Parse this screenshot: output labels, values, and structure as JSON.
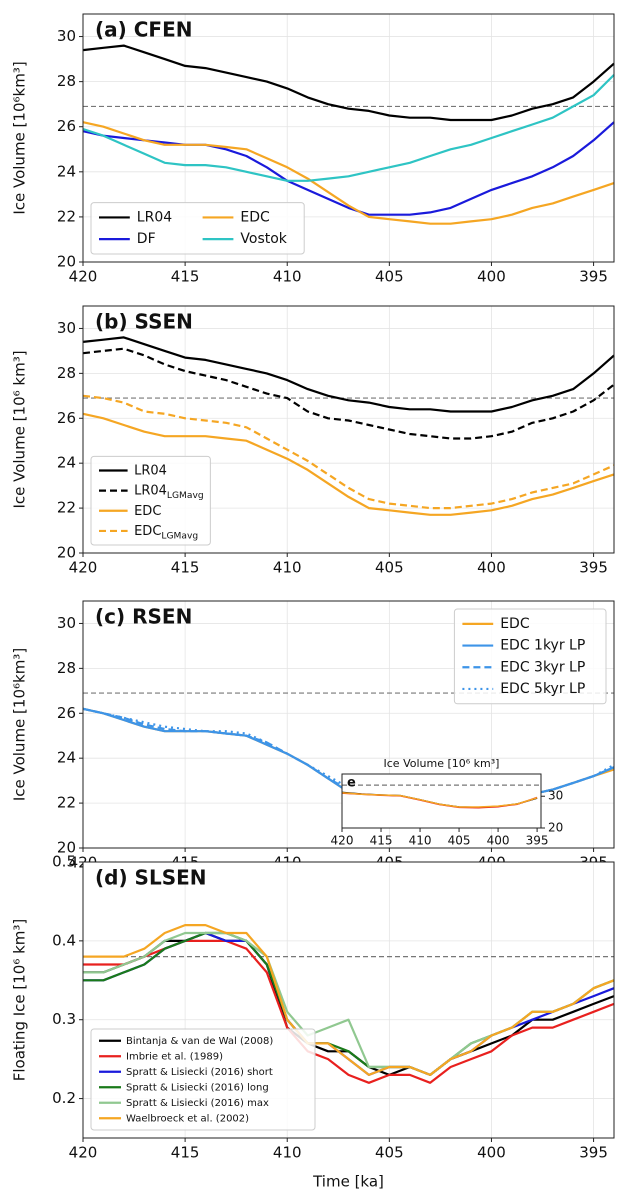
{
  "chart_data": [
    {
      "type": "line",
      "title": "(a) CFEN",
      "ylabel": "Ice Volume [10⁶km³]",
      "x": [
        420,
        419,
        418,
        417,
        416,
        415,
        414,
        413,
        412,
        411,
        410,
        409,
        408,
        407,
        406,
        405,
        404,
        403,
        402,
        401,
        400,
        399,
        398,
        397,
        396,
        395,
        394
      ],
      "xlim": [
        420,
        394
      ],
      "xticks": [
        420,
        415,
        410,
        405,
        400,
        395
      ],
      "ylim": [
        20,
        31
      ],
      "yticks": [
        20,
        22,
        24,
        26,
        28,
        30
      ],
      "grid": true,
      "reference_line": 26.9,
      "legend": "lower left",
      "legend_columns": 2,
      "series": [
        {
          "name": "LR04",
          "color": "#000000",
          "values": [
            29.4,
            29.5,
            29.6,
            29.3,
            29.0,
            28.7,
            28.6,
            28.4,
            28.2,
            28.0,
            27.7,
            27.3,
            27.0,
            26.8,
            26.7,
            26.5,
            26.4,
            26.4,
            26.3,
            26.3,
            26.3,
            26.5,
            26.8,
            27.0,
            27.3,
            28.0,
            28.8
          ]
        },
        {
          "name": "DF",
          "color": "#1a1adb",
          "values": [
            25.8,
            25.6,
            25.5,
            25.4,
            25.3,
            25.2,
            25.2,
            25.0,
            24.7,
            24.2,
            23.6,
            23.2,
            22.8,
            22.4,
            22.1,
            22.1,
            22.1,
            22.2,
            22.4,
            22.8,
            23.2,
            23.5,
            23.8,
            24.2,
            24.7,
            25.4,
            26.2
          ]
        },
        {
          "name": "EDC",
          "color": "#f5a623",
          "values": [
            26.2,
            26.0,
            25.7,
            25.4,
            25.2,
            25.2,
            25.2,
            25.1,
            25.0,
            24.6,
            24.2,
            23.7,
            23.1,
            22.5,
            22.0,
            21.9,
            21.8,
            21.7,
            21.7,
            21.8,
            21.9,
            22.1,
            22.4,
            22.6,
            22.9,
            23.2,
            23.5
          ]
        },
        {
          "name": "Vostok",
          "color": "#2ec4c4",
          "values": [
            25.9,
            25.6,
            25.2,
            24.8,
            24.4,
            24.3,
            24.3,
            24.2,
            24.0,
            23.8,
            23.6,
            23.6,
            23.7,
            23.8,
            24.0,
            24.2,
            24.4,
            24.7,
            25.0,
            25.2,
            25.5,
            25.8,
            26.1,
            26.4,
            26.9,
            27.4,
            28.3
          ]
        }
      ]
    },
    {
      "type": "line",
      "title": "(b) SSEN",
      "ylabel": "Ice Volume [10⁶ km³]",
      "x": [
        420,
        419,
        418,
        417,
        416,
        415,
        414,
        413,
        412,
        411,
        410,
        409,
        408,
        407,
        406,
        405,
        404,
        403,
        402,
        401,
        400,
        399,
        398,
        397,
        396,
        395,
        394
      ],
      "xlim": [
        420,
        394
      ],
      "xticks": [
        420,
        415,
        410,
        405,
        400,
        395
      ],
      "ylim": [
        20,
        31
      ],
      "yticks": [
        20,
        22,
        24,
        26,
        28,
        30
      ],
      "grid": true,
      "reference_line": 26.9,
      "legend": "lower left",
      "legend_columns": 1,
      "series": [
        {
          "name": "LR04",
          "color": "#000000",
          "values": [
            29.4,
            29.5,
            29.6,
            29.3,
            29.0,
            28.7,
            28.6,
            28.4,
            28.2,
            28.0,
            27.7,
            27.3,
            27.0,
            26.8,
            26.7,
            26.5,
            26.4,
            26.4,
            26.3,
            26.3,
            26.3,
            26.5,
            26.8,
            27.0,
            27.3,
            28.0,
            28.8
          ]
        },
        {
          "name": "LR04",
          "name_sub": "LGMavg",
          "dash": "dashed",
          "color": "#000000",
          "values": [
            28.9,
            29.0,
            29.1,
            28.8,
            28.4,
            28.1,
            27.9,
            27.7,
            27.4,
            27.1,
            26.9,
            26.3,
            26.0,
            25.9,
            25.7,
            25.5,
            25.3,
            25.2,
            25.1,
            25.1,
            25.2,
            25.4,
            25.8,
            26.0,
            26.3,
            26.8,
            27.5
          ]
        },
        {
          "name": "EDC",
          "color": "#f5a623",
          "values": [
            26.2,
            26.0,
            25.7,
            25.4,
            25.2,
            25.2,
            25.2,
            25.1,
            25.0,
            24.6,
            24.2,
            23.7,
            23.1,
            22.5,
            22.0,
            21.9,
            21.8,
            21.7,
            21.7,
            21.8,
            21.9,
            22.1,
            22.4,
            22.6,
            22.9,
            23.2,
            23.5
          ]
        },
        {
          "name": "EDC",
          "name_sub": "LGMavg",
          "dash": "dashed",
          "color": "#f5a623",
          "values": [
            27.0,
            26.9,
            26.7,
            26.3,
            26.2,
            26.0,
            25.9,
            25.8,
            25.6,
            25.1,
            24.6,
            24.1,
            23.5,
            22.9,
            22.4,
            22.2,
            22.1,
            22.0,
            22.0,
            22.1,
            22.2,
            22.4,
            22.7,
            22.9,
            23.1,
            23.5,
            23.9
          ]
        }
      ]
    },
    {
      "type": "line",
      "title": "(c) RSEN",
      "ylabel": "Ice Volume [10⁶km³]",
      "x": [
        420,
        419,
        418,
        417,
        416,
        415,
        414,
        413,
        412,
        411,
        410,
        409,
        408,
        407,
        406,
        405,
        404,
        403,
        402,
        401,
        400,
        399,
        398,
        397,
        396,
        395,
        394
      ],
      "xlim": [
        420,
        394
      ],
      "xticks": [
        420,
        415,
        410,
        405,
        400,
        395
      ],
      "ylim": [
        20,
        31
      ],
      "yticks": [
        20,
        22,
        24,
        26,
        28,
        30
      ],
      "grid": true,
      "reference_line": 26.9,
      "legend": "upper right",
      "legend_columns": 1,
      "series": [
        {
          "name": "EDC",
          "color": "#f5a623",
          "values": [
            26.2,
            26.0,
            25.7,
            25.4,
            25.2,
            25.2,
            25.2,
            25.1,
            25.0,
            24.6,
            24.2,
            23.7,
            23.1,
            22.5,
            22.0,
            21.9,
            21.8,
            21.7,
            21.7,
            21.8,
            21.9,
            22.1,
            22.4,
            22.6,
            22.9,
            23.2,
            23.5
          ]
        },
        {
          "name": "EDC 1kyr LP",
          "color": "#3d94e8",
          "values": [
            26.2,
            26.0,
            25.7,
            25.4,
            25.2,
            25.2,
            25.2,
            25.1,
            25.0,
            24.6,
            24.2,
            23.7,
            23.1,
            22.5,
            22.0,
            21.9,
            21.8,
            21.8,
            21.8,
            21.8,
            21.9,
            22.1,
            22.4,
            22.6,
            22.9,
            23.2,
            23.6
          ]
        },
        {
          "name": "EDC 3kyr LP",
          "dash": "dashed",
          "color": "#3d94e8",
          "values": [
            26.2,
            26.0,
            25.8,
            25.5,
            25.3,
            25.2,
            25.2,
            25.1,
            25.0,
            24.7,
            24.2,
            23.7,
            23.1,
            22.6,
            22.1,
            21.9,
            21.9,
            21.8,
            21.8,
            21.9,
            22.0,
            22.2,
            22.4,
            22.6,
            22.9,
            23.2,
            23.6
          ]
        },
        {
          "name": "EDC 5kyr LP",
          "dash": "dotted",
          "color": "#3d94e8",
          "values": [
            26.2,
            26.0,
            25.8,
            25.6,
            25.4,
            25.3,
            25.2,
            25.2,
            25.1,
            24.7,
            24.2,
            23.7,
            23.2,
            22.7,
            22.2,
            22.0,
            21.9,
            21.9,
            21.9,
            21.9,
            22.0,
            22.2,
            22.4,
            22.6,
            22.9,
            23.2,
            23.7
          ]
        }
      ]
    },
    {
      "type": "line",
      "title": "(d) SLSEN",
      "ylabel": "Floating Ice [10⁶ km³]",
      "xlabel": "Time [ka]",
      "x": [
        420,
        419,
        418,
        417,
        416,
        415,
        414,
        413,
        412,
        411,
        410,
        409,
        408,
        407,
        406,
        405,
        404,
        403,
        402,
        401,
        400,
        399,
        398,
        397,
        396,
        395,
        394
      ],
      "xlim": [
        420,
        394
      ],
      "xticks": [
        420,
        415,
        410,
        405,
        400,
        395
      ],
      "ylim": [
        0.15,
        0.5
      ],
      "yticks": [
        0.2,
        0.3,
        0.4,
        0.5
      ],
      "grid": true,
      "reference_line": 0.38,
      "legend": "lower left",
      "legend_columns": 1,
      "series": [
        {
          "name": "Bintanja & van de Wal (2008)",
          "color": "#000000",
          "values": [
            0.36,
            0.36,
            0.37,
            0.38,
            0.4,
            0.4,
            0.41,
            0.4,
            0.4,
            0.37,
            0.29,
            0.27,
            0.26,
            0.26,
            0.24,
            0.23,
            0.24,
            0.23,
            0.25,
            0.26,
            0.27,
            0.28,
            0.3,
            0.3,
            0.31,
            0.32,
            0.33
          ]
        },
        {
          "name": "Imbrie et al. (1989)",
          "color": "#e8201e",
          "values": [
            0.37,
            0.37,
            0.37,
            0.38,
            0.39,
            0.4,
            0.4,
            0.4,
            0.39,
            0.36,
            0.29,
            0.26,
            0.25,
            0.23,
            0.22,
            0.23,
            0.23,
            0.22,
            0.24,
            0.25,
            0.26,
            0.28,
            0.29,
            0.29,
            0.3,
            0.31,
            0.32
          ]
        },
        {
          "name": "Spratt & Lisiecki (2016) short",
          "color": "#1a1adb",
          "values": [
            0.35,
            0.35,
            0.36,
            0.37,
            0.39,
            0.4,
            0.41,
            0.4,
            0.4,
            0.37,
            0.3,
            0.27,
            0.27,
            0.25,
            0.23,
            0.24,
            0.24,
            0.23,
            0.25,
            0.26,
            0.28,
            0.29,
            0.3,
            0.31,
            0.32,
            0.33,
            0.34
          ]
        },
        {
          "name": "Spratt & Lisiecki (2016) long",
          "color": "#1a7a1a",
          "values": [
            0.35,
            0.35,
            0.36,
            0.37,
            0.39,
            0.4,
            0.41,
            0.41,
            0.4,
            0.37,
            0.3,
            0.27,
            0.27,
            0.26,
            0.24,
            0.24,
            0.24,
            0.23,
            0.25,
            0.27,
            0.28,
            0.29,
            0.31,
            0.31,
            0.32,
            0.34,
            0.35
          ]
        },
        {
          "name": "Spratt & Lisiecki (2016) max",
          "color": "#90c890",
          "values": [
            0.36,
            0.36,
            0.37,
            0.38,
            0.4,
            0.41,
            0.41,
            0.41,
            0.4,
            0.38,
            0.31,
            0.28,
            0.29,
            0.3,
            0.24,
            0.24,
            0.24,
            0.23,
            0.25,
            0.27,
            0.28,
            0.29,
            0.31,
            0.31,
            0.32,
            0.34,
            0.35
          ]
        },
        {
          "name": "Waelbroeck et al. (2002)",
          "color": "#f5a623",
          "values": [
            0.38,
            0.38,
            0.38,
            0.39,
            0.41,
            0.42,
            0.42,
            0.41,
            0.41,
            0.38,
            0.3,
            0.27,
            0.27,
            0.25,
            0.23,
            0.24,
            0.24,
            0.23,
            0.25,
            0.26,
            0.28,
            0.29,
            0.31,
            0.31,
            0.32,
            0.34,
            0.35
          ]
        }
      ]
    },
    {
      "type": "line",
      "title": "Ice Volume [10⁶ km³]",
      "label": "e",
      "y_axis_side": "right",
      "x": [
        420,
        417.5,
        415,
        412.5,
        410,
        407.5,
        405,
        402.5,
        400,
        397.5,
        395
      ],
      "xlim": [
        420,
        394.5
      ],
      "xticks": [
        420,
        415,
        410,
        405,
        400,
        395
      ],
      "ylim": [
        20,
        37
      ],
      "yticks": [
        20,
        30
      ],
      "grid": false,
      "reference_line": 33.5,
      "series": [
        {
          "color": "#000000",
          "values": [
            31.2,
            30.7,
            30.4,
            30.2,
            28.9,
            27.5,
            26.6,
            26.5,
            26.8,
            27.6,
            29.4
          ]
        },
        {
          "color": "#e8201e",
          "values": [
            31.0,
            30.6,
            30.3,
            30.1,
            28.8,
            27.4,
            26.5,
            26.4,
            26.7,
            27.5,
            29.6
          ]
        },
        {
          "color": "#f5a623",
          "values": [
            31.1,
            30.6,
            30.4,
            30.2,
            28.9,
            27.5,
            26.6,
            26.6,
            26.9,
            27.6,
            29.5
          ]
        }
      ]
    }
  ]
}
